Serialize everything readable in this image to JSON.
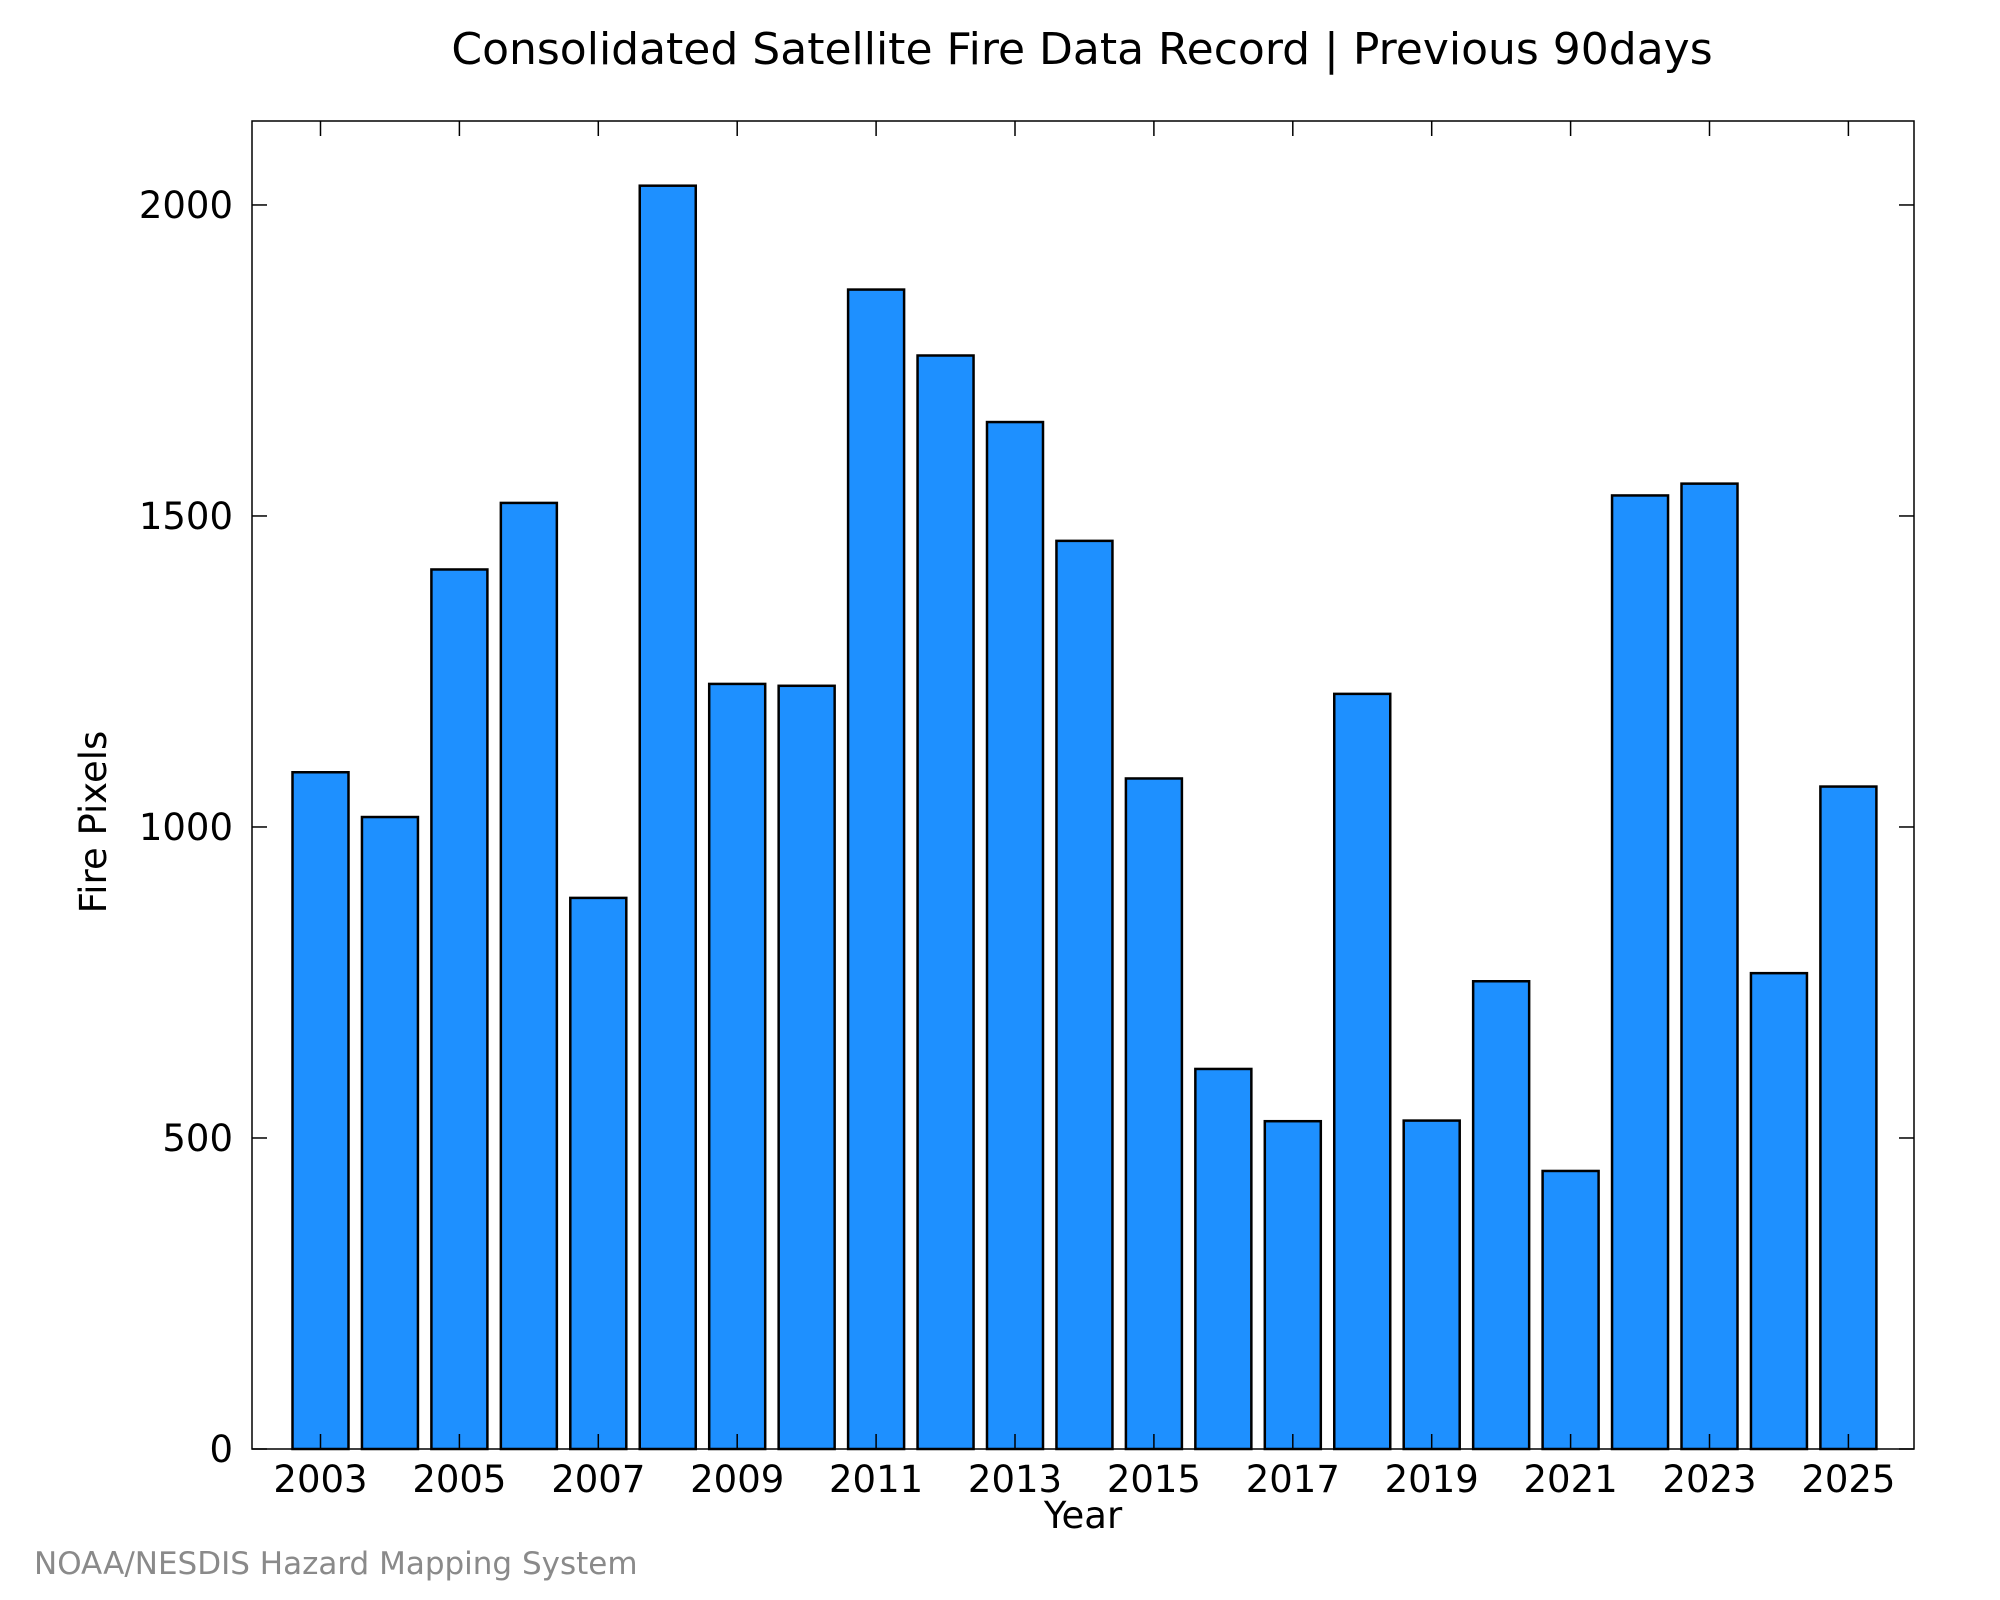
{
  "chart_data": {
    "type": "bar",
    "title": "Consolidated Satellite Fire Data Record | Previous 90days",
    "xlabel": "Year",
    "ylabel": "Fire Pixels",
    "credit": "NOAA/NESDIS Hazard Mapping System",
    "categories": [
      "2003",
      "2004",
      "2005",
      "2006",
      "2007",
      "2008",
      "2009",
      "2010",
      "2011",
      "2012",
      "2013",
      "2014",
      "2015",
      "2016",
      "2017",
      "2018",
      "2019",
      "2020",
      "2021",
      "2022",
      "2023",
      "2024",
      "2025"
    ],
    "values": [
      1088,
      1016,
      1414,
      1521,
      886,
      2031,
      1230,
      1227,
      1864,
      1758,
      1651,
      1460,
      1078,
      611,
      527,
      1214,
      528,
      752,
      447,
      1533,
      1552,
      765,
      1065
    ],
    "xticks": [
      "2003",
      "2005",
      "2007",
      "2009",
      "2011",
      "2013",
      "2015",
      "2017",
      "2019",
      "2021",
      "2023",
      "2025"
    ],
    "yticks": [
      0,
      500,
      1000,
      1500,
      2000
    ],
    "ylim": [
      0,
      2135
    ],
    "grid": false,
    "bar_color": "#1e90ff",
    "bar_edge_color": "#000000"
  }
}
